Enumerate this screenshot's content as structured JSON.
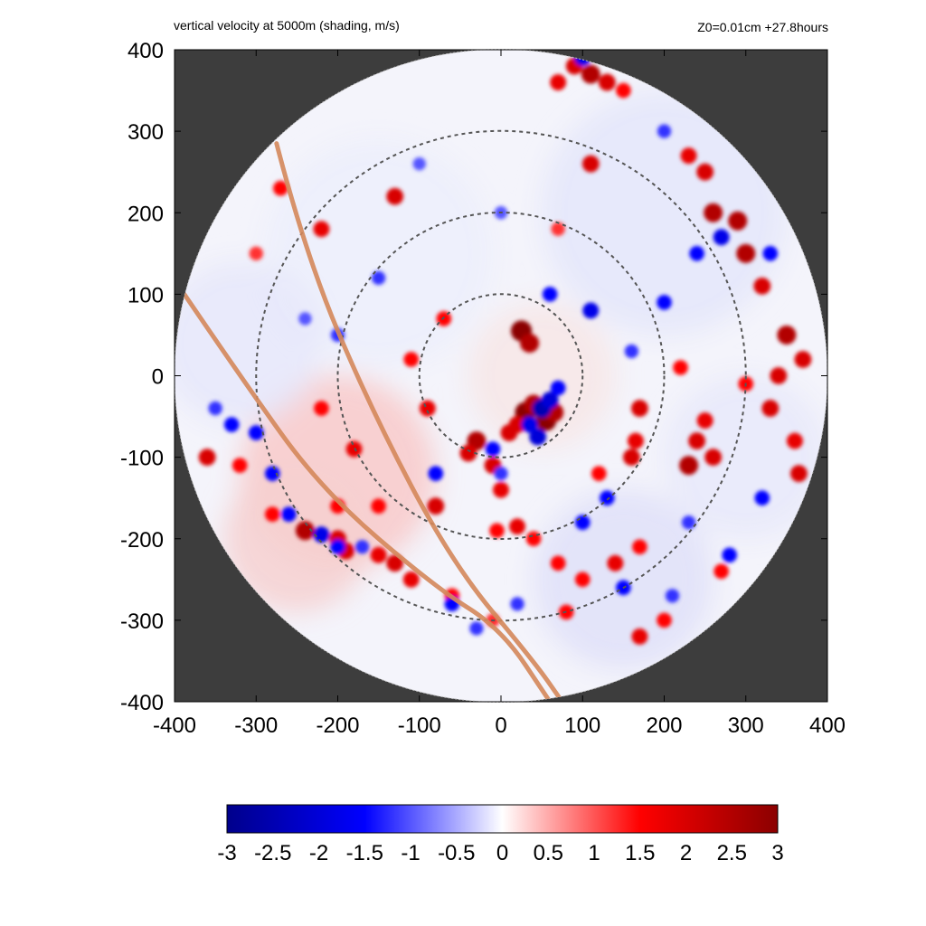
{
  "header": {
    "title": "vertical velocity at 5000m (shading, m/s)",
    "run_info": "Z0=0.01cm  +27.8hours"
  },
  "chart_data": {
    "type": "heatmap",
    "title": "vertical velocity at 5000m (shading, m/s)",
    "subtitle": "Z0=0.01cm  +27.8hours",
    "xlabel": "",
    "ylabel": "",
    "xlim": [
      -400,
      400
    ],
    "ylim": [
      -400,
      400
    ],
    "x_ticks": [
      "-400",
      "-300",
      "-200",
      "-100",
      "0",
      "100",
      "200",
      "300",
      "400"
    ],
    "y_ticks": [
      "400",
      "300",
      "200",
      "100",
      "0",
      "-100",
      "-200",
      "-300",
      "-400"
    ],
    "domain_radius": 400,
    "background_outside_domain": "#3d3d3d",
    "range_rings": [
      100,
      200,
      300
    ],
    "range_ring_color": "#555555",
    "track_lines": [
      {
        "color": "#d4875a",
        "points": [
          [
            -275,
            285
          ],
          [
            -240,
            150
          ],
          [
            -160,
            -40
          ],
          [
            -60,
            -230
          ],
          [
            40,
            -350
          ],
          [
            75,
            -400
          ]
        ]
      },
      {
        "color": "#d4875a",
        "points": [
          [
            -388,
            100
          ],
          [
            -320,
            0
          ],
          [
            -220,
            -140
          ],
          [
            -80,
            -260
          ],
          [
            0,
            -310
          ],
          [
            60,
            -400
          ]
        ]
      }
    ],
    "colorbar": {
      "min": -3,
      "max": 3,
      "ticks": [
        "-3",
        "-2.5",
        "-2",
        "-1.5",
        "-1",
        "-0.5",
        "0",
        "0.5",
        "1",
        "1.5",
        "2",
        "2.5",
        "3"
      ],
      "colors": [
        "#00008b",
        "#0000ff",
        "#ffffff",
        "#ff0000",
        "#8b0000"
      ]
    },
    "updraft_cores": [
      [
        30,
        -45,
        3.0
      ],
      [
        55,
        -55,
        3.0
      ],
      [
        40,
        -35,
        2.5
      ],
      [
        65,
        -45,
        2.5
      ],
      [
        20,
        -60,
        2.0
      ],
      [
        -30,
        -80,
        2.5
      ],
      [
        -40,
        -95,
        2.0
      ],
      [
        10,
        -70,
        2.0
      ],
      [
        25,
        55,
        3.0
      ],
      [
        35,
        40,
        2.5
      ],
      [
        -10,
        -110,
        2.0
      ],
      [
        0,
        -140,
        1.8
      ],
      [
        -5,
        -190,
        1.5
      ],
      [
        20,
        -185,
        1.8
      ],
      [
        40,
        -200,
        1.5
      ],
      [
        -130,
        -230,
        2.0
      ],
      [
        -150,
        -220,
        1.8
      ],
      [
        -190,
        -215,
        2.0
      ],
      [
        -240,
        -190,
        2.5
      ],
      [
        -200,
        -200,
        2.0
      ],
      [
        -280,
        -170,
        1.5
      ],
      [
        -320,
        -110,
        1.5
      ],
      [
        -360,
        -100,
        2.0
      ],
      [
        -200,
        -160,
        1.5
      ],
      [
        -150,
        -160,
        1.5
      ],
      [
        -110,
        -250,
        1.8
      ],
      [
        -60,
        -270,
        1.5
      ],
      [
        100,
        -250,
        1.5
      ],
      [
        140,
        -230,
        1.8
      ],
      [
        170,
        -210,
        1.5
      ],
      [
        160,
        -100,
        2.0
      ],
      [
        170,
        -40,
        2.0
      ],
      [
        165,
        -80,
        1.8
      ],
      [
        120,
        -120,
        1.5
      ],
      [
        230,
        -110,
        2.5
      ],
      [
        240,
        -80,
        2.0
      ],
      [
        260,
        -100,
        2.0
      ],
      [
        250,
        -55,
        1.8
      ],
      [
        300,
        -10,
        1.5
      ],
      [
        350,
        50,
        2.5
      ],
      [
        340,
        0,
        2.0
      ],
      [
        330,
        -40,
        2.0
      ],
      [
        360,
        -80,
        1.8
      ],
      [
        365,
        -120,
        2.0
      ],
      [
        370,
        20,
        2.0
      ],
      [
        320,
        110,
        2.0
      ],
      [
        300,
        150,
        2.5
      ],
      [
        290,
        190,
        2.5
      ],
      [
        260,
        200,
        2.5
      ],
      [
        250,
        250,
        2.0
      ],
      [
        230,
        270,
        1.8
      ],
      [
        110,
        370,
        2.5
      ],
      [
        90,
        380,
        2.0
      ],
      [
        130,
        360,
        2.0
      ],
      [
        150,
        350,
        1.5
      ],
      [
        70,
        360,
        1.8
      ],
      [
        110,
        260,
        2.0
      ],
      [
        -130,
        220,
        2.0
      ],
      [
        -220,
        180,
        1.8
      ],
      [
        -70,
        70,
        1.5
      ],
      [
        -220,
        -40,
        1.5
      ],
      [
        -180,
        -90,
        1.8
      ],
      [
        -110,
        20,
        1.5
      ],
      [
        200,
        -300,
        1.5
      ],
      [
        270,
        -240,
        1.5
      ],
      [
        170,
        -320,
        1.8
      ],
      [
        80,
        -290,
        1.5
      ],
      [
        -10,
        -300,
        1.2
      ],
      [
        70,
        -230,
        1.5
      ],
      [
        -270,
        230,
        1.5
      ],
      [
        -300,
        150,
        1.2
      ],
      [
        220,
        10,
        1.5
      ],
      [
        -80,
        -160,
        2.0
      ],
      [
        -90,
        -40,
        1.8
      ],
      [
        70,
        180,
        1.2
      ]
    ],
    "downdraft_cores": [
      [
        50,
        -40,
        -2.5
      ],
      [
        60,
        -30,
        -2.0
      ],
      [
        45,
        -75,
        -2.0
      ],
      [
        35,
        -60,
        -1.8
      ],
      [
        70,
        -15,
        -1.5
      ],
      [
        -10,
        -90,
        -1.5
      ],
      [
        0,
        -120,
        -1.2
      ],
      [
        -220,
        -195,
        -1.8
      ],
      [
        -200,
        -210,
        -1.5
      ],
      [
        -170,
        -210,
        -1.2
      ],
      [
        -260,
        -170,
        -1.5
      ],
      [
        -300,
        -70,
        -1.5
      ],
      [
        -330,
        -60,
        -1.5
      ],
      [
        -350,
        -40,
        -1.2
      ],
      [
        270,
        170,
        -1.8
      ],
      [
        240,
        150,
        -1.5
      ],
      [
        200,
        90,
        -1.5
      ],
      [
        110,
        80,
        -1.8
      ],
      [
        60,
        100,
        -1.5
      ],
      [
        100,
        390,
        -1.8
      ],
      [
        330,
        150,
        -1.5
      ],
      [
        -200,
        50,
        -1.2
      ],
      [
        -150,
        120,
        -1.2
      ],
      [
        100,
        -180,
        -1.5
      ],
      [
        130,
        -150,
        -1.5
      ],
      [
        150,
        -260,
        -1.5
      ],
      [
        210,
        -270,
        -1.2
      ],
      [
        280,
        -220,
        -1.5
      ],
      [
        -60,
        -280,
        -1.5
      ],
      [
        -30,
        -310,
        -1.2
      ],
      [
        0,
        200,
        -1.0
      ],
      [
        -100,
        260,
        -1.0
      ],
      [
        200,
        300,
        -1.2
      ],
      [
        320,
        -150,
        -1.5
      ],
      [
        230,
        -180,
        -1.2
      ],
      [
        -80,
        -120,
        -1.5
      ],
      [
        20,
        -280,
        -1.2
      ],
      [
        -280,
        -120,
        -1.5
      ],
      [
        160,
        30,
        -1.2
      ],
      [
        -240,
        70,
        -1.0
      ]
    ]
  }
}
